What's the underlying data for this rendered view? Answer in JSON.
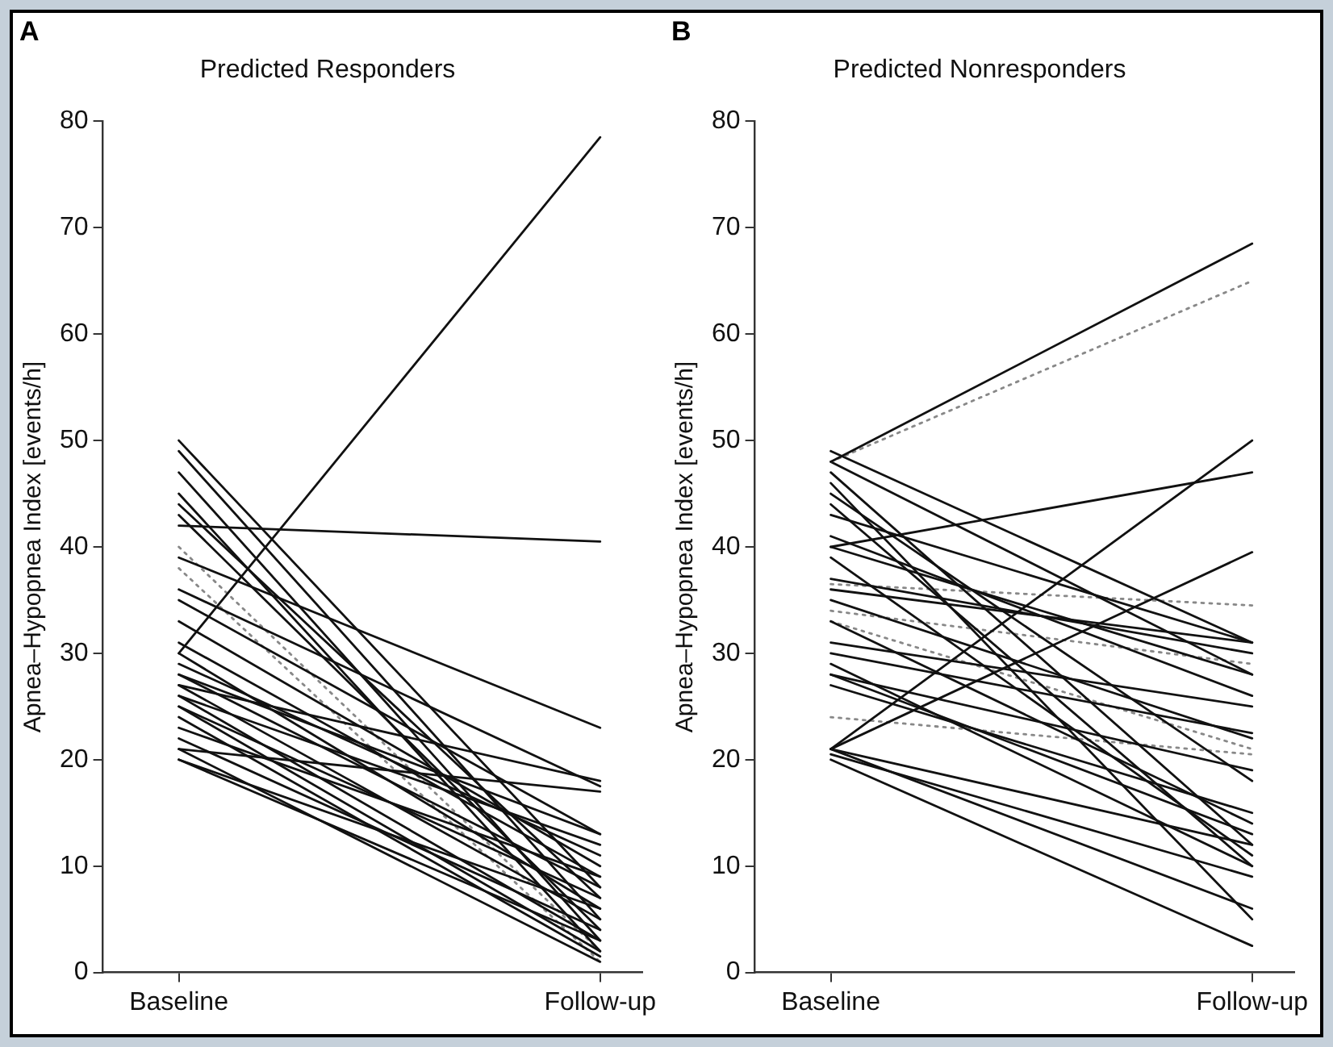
{
  "chart_data": [
    {
      "type": "line",
      "title": "Predicted Responders",
      "ylabel": "Apnea–Hypopnea Index [events/h]",
      "annotations": [
        "A"
      ],
      "categories": [
        "Baseline",
        "Follow-up"
      ],
      "ylim": [
        0,
        80
      ],
      "yticks": [
        0,
        10,
        20,
        30,
        40,
        50,
        60,
        70,
        80
      ],
      "grid": false,
      "legend": false,
      "marker": "none",
      "series": [
        {
          "color": "#111111",
          "values": [
            30,
            78.5
          ]
        },
        {
          "color": "#111111",
          "values": [
            42,
            40.5
          ]
        },
        {
          "color": "#111111",
          "values": [
            50,
            8
          ]
        },
        {
          "color": "#111111",
          "values": [
            49,
            5
          ]
        },
        {
          "color": "#111111",
          "values": [
            47,
            3
          ]
        },
        {
          "color": "#111111",
          "values": [
            45,
            2
          ]
        },
        {
          "color": "#111111",
          "values": [
            44,
            7
          ]
        },
        {
          "color": "#111111",
          "values": [
            43,
            4
          ]
        },
        {
          "color": "#111111",
          "values": [
            39,
            23
          ]
        },
        {
          "color": "#111111",
          "values": [
            36,
            17.5
          ]
        },
        {
          "color": "#111111",
          "values": [
            35,
            13
          ]
        },
        {
          "color": "#111111",
          "values": [
            33,
            10
          ]
        },
        {
          "color": "#111111",
          "values": [
            31,
            9
          ]
        },
        {
          "color": "#111111",
          "values": [
            30,
            6
          ]
        },
        {
          "color": "#111111",
          "values": [
            29,
            11
          ]
        },
        {
          "color": "#111111",
          "values": [
            28,
            8
          ]
        },
        {
          "color": "#111111",
          "values": [
            28,
            13
          ]
        },
        {
          "color": "#111111",
          "values": [
            27,
            5
          ]
        },
        {
          "color": "#111111",
          "values": [
            27,
            18
          ]
        },
        {
          "color": "#111111",
          "values": [
            26,
            3
          ]
        },
        {
          "color": "#111111",
          "values": [
            26,
            12
          ]
        },
        {
          "color": "#111111",
          "values": [
            25,
            7
          ]
        },
        {
          "color": "#111111",
          "values": [
            25,
            2
          ]
        },
        {
          "color": "#111111",
          "values": [
            24,
            1.5
          ]
        },
        {
          "color": "#111111",
          "values": [
            23,
            9
          ]
        },
        {
          "color": "#111111",
          "values": [
            22,
            4
          ]
        },
        {
          "color": "#111111",
          "values": [
            21,
            1
          ]
        },
        {
          "color": "#111111",
          "values": [
            21,
            17
          ]
        },
        {
          "color": "#111111",
          "values": [
            20,
            6
          ]
        },
        {
          "color": "#111111",
          "values": [
            20,
            3
          ]
        },
        {
          "color": "#888888",
          "line_style": "dotted",
          "values": [
            40,
            2
          ]
        },
        {
          "color": "#888888",
          "line_style": "dotted",
          "values": [
            38,
            1
          ]
        }
      ]
    },
    {
      "type": "line",
      "title": "Predicted Nonresponders",
      "ylabel": "Apnea–Hypopnea Index [events/h]",
      "annotations": [
        "B"
      ],
      "categories": [
        "Baseline",
        "Follow-up"
      ],
      "ylim": [
        0,
        80
      ],
      "yticks": [
        0,
        10,
        20,
        30,
        40,
        50,
        60,
        70,
        80
      ],
      "grid": false,
      "legend": false,
      "marker": "none",
      "series": [
        {
          "color": "#111111",
          "values": [
            48,
            68.5
          ]
        },
        {
          "color": "#888888",
          "line_style": "dotted",
          "values": [
            48,
            65
          ]
        },
        {
          "color": "#111111",
          "values": [
            49,
            31
          ]
        },
        {
          "color": "#111111",
          "values": [
            48,
            28
          ]
        },
        {
          "color": "#111111",
          "values": [
            47,
            12
          ]
        },
        {
          "color": "#111111",
          "values": [
            46,
            5
          ]
        },
        {
          "color": "#111111",
          "values": [
            45,
            18
          ]
        },
        {
          "color": "#111111",
          "values": [
            44,
            10
          ]
        },
        {
          "color": "#111111",
          "values": [
            43,
            31
          ]
        },
        {
          "color": "#111111",
          "values": [
            41,
            26
          ]
        },
        {
          "color": "#111111",
          "values": [
            40,
            47
          ]
        },
        {
          "color": "#111111",
          "values": [
            40,
            28
          ]
        },
        {
          "color": "#111111",
          "values": [
            39,
            11
          ]
        },
        {
          "color": "#111111",
          "values": [
            37,
            30
          ]
        },
        {
          "color": "#111111",
          "values": [
            36,
            31
          ]
        },
        {
          "color": "#111111",
          "values": [
            35,
            22
          ]
        },
        {
          "color": "#111111",
          "values": [
            33,
            14
          ]
        },
        {
          "color": "#111111",
          "values": [
            31,
            25
          ]
        },
        {
          "color": "#111111",
          "values": [
            30,
            22.5
          ]
        },
        {
          "color": "#111111",
          "values": [
            29,
            10
          ]
        },
        {
          "color": "#111111",
          "values": [
            28,
            13
          ]
        },
        {
          "color": "#111111",
          "values": [
            28,
            19
          ]
        },
        {
          "color": "#111111",
          "values": [
            27,
            15
          ]
        },
        {
          "color": "#111111",
          "values": [
            21,
            50
          ]
        },
        {
          "color": "#111111",
          "values": [
            21,
            39.5
          ]
        },
        {
          "color": "#111111",
          "values": [
            21,
            12
          ]
        },
        {
          "color": "#111111",
          "values": [
            21,
            6
          ]
        },
        {
          "color": "#111111",
          "values": [
            20.5,
            9
          ]
        },
        {
          "color": "#111111",
          "values": [
            20,
            2.5
          ]
        },
        {
          "color": "#888888",
          "line_style": "dotted",
          "values": [
            36.5,
            34.5
          ]
        },
        {
          "color": "#888888",
          "line_style": "dotted",
          "values": [
            34,
            29
          ]
        },
        {
          "color": "#888888",
          "line_style": "dotted",
          "values": [
            33,
            21
          ]
        },
        {
          "color": "#888888",
          "line_style": "dotted",
          "values": [
            24,
            20.5
          ]
        }
      ]
    }
  ]
}
